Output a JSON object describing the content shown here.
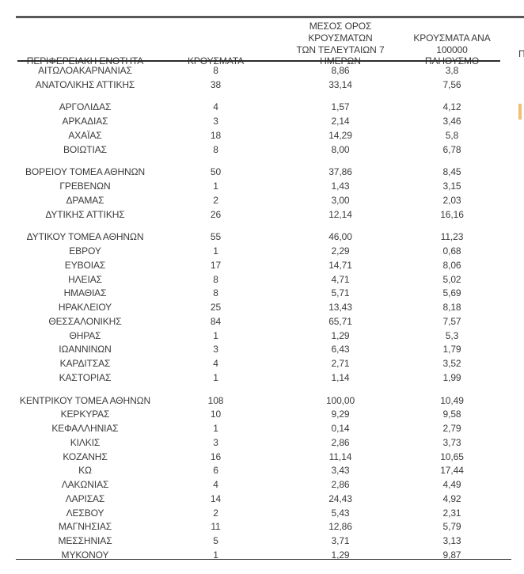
{
  "page": {
    "background": "#ffffff",
    "text_color": "#3b3b3b",
    "top_rule_color": "#58585a",
    "line_color": "#2b2b2b",
    "highlight_color": "#edaa43"
  },
  "table": {
    "header": {
      "col1": "ΠΕΡΙΦΕΡΕΙΑΚΗ ΕΝΟΤΗΤΑ",
      "col2": "ΚΡΟΥΣΜΑΤΑ",
      "col3_lines": [
        "ΜΕΣΟΣ ΟΡΟΣ ΚΡΟΥΣΜΑΤΩΝ",
        "ΤΩΝ ΤΕΛΕΥΤΑΙΩΝ 7",
        "ΗΜΕΡΩΝ"
      ],
      "col4_lines": [
        "ΚΡΟΥΣΜΑΤΑ ΑΝΑ 100000",
        "ΠΛΗΘΥΣΜΟ"
      ],
      "col5_partial": "Π"
    },
    "groups": [
      {
        "rows": [
          {
            "region": "ΑΙΤΩΛΟΑΚΑΡΝΑΝΙΑΣ",
            "cases": "8",
            "avg7": "8,86",
            "per100k": "3,8"
          },
          {
            "region": "ΑΝΑΤΟΛΙΚΗΣ ΑΤΤΙΚΗΣ",
            "cases": "38",
            "avg7": "33,14",
            "per100k": "7,56"
          }
        ]
      },
      {
        "rows": [
          {
            "region": "ΑΡΓΟΛΙΔΑΣ",
            "cases": "4",
            "avg7": "1,57",
            "per100k": "4,12"
          },
          {
            "region": "ΑΡΚΑΔΙΑΣ",
            "cases": "3",
            "avg7": "2,14",
            "per100k": "3,46"
          },
          {
            "region": "ΑΧΑΪΑΣ",
            "cases": "18",
            "avg7": "14,29",
            "per100k": "5,8"
          },
          {
            "region": "ΒΟΙΩΤΙΑΣ",
            "cases": "8",
            "avg7": "8,00",
            "per100k": "6,78"
          }
        ]
      },
      {
        "rows": [
          {
            "region": "ΒΟΡΕΙΟΥ ΤΟΜΕΑ ΑΘΗΝΩΝ",
            "cases": "50",
            "avg7": "37,86",
            "per100k": "8,45"
          },
          {
            "region": "ΓΡΕΒΕΝΩΝ",
            "cases": "1",
            "avg7": "1,43",
            "per100k": "3,15"
          },
          {
            "region": "ΔΡΑΜΑΣ",
            "cases": "2",
            "avg7": "3,00",
            "per100k": "2,03"
          },
          {
            "region": "ΔΥΤΙΚΗΣ ΑΤΤΙΚΗΣ",
            "cases": "26",
            "avg7": "12,14",
            "per100k": "16,16"
          }
        ]
      },
      {
        "rows": [
          {
            "region": "ΔΥΤΙΚΟΥ ΤΟΜΕΑ ΑΘΗΝΩΝ",
            "cases": "55",
            "avg7": "46,00",
            "per100k": "11,23"
          },
          {
            "region": "ΕΒΡΟΥ",
            "cases": "1",
            "avg7": "2,29",
            "per100k": "0,68"
          },
          {
            "region": "ΕΥΒΟΙΑΣ",
            "cases": "17",
            "avg7": "14,71",
            "per100k": "8,06"
          },
          {
            "region": "ΗΛΕΙΑΣ",
            "cases": "8",
            "avg7": "4,71",
            "per100k": "5,02"
          },
          {
            "region": "ΗΜΑΘΙΑΣ",
            "cases": "8",
            "avg7": "5,71",
            "per100k": "5,69"
          },
          {
            "region": "ΗΡΑΚΛΕΙΟΥ",
            "cases": "25",
            "avg7": "13,43",
            "per100k": "8,18"
          },
          {
            "region": "ΘΕΣΣΑΛΟΝΙΚΗΣ",
            "cases": "84",
            "avg7": "65,71",
            "per100k": "7,57"
          },
          {
            "region": "ΘΗΡΑΣ",
            "cases": "1",
            "avg7": "1,29",
            "per100k": "5,3"
          },
          {
            "region": "ΙΩΑΝΝΙΝΩΝ",
            "cases": "3",
            "avg7": "6,43",
            "per100k": "1,79"
          },
          {
            "region": "ΚΑΡΔΙΤΣΑΣ",
            "cases": "4",
            "avg7": "2,71",
            "per100k": "3,52"
          },
          {
            "region": "ΚΑΣΤΟΡΙΑΣ",
            "cases": "1",
            "avg7": "1,14",
            "per100k": "1,99"
          }
        ]
      },
      {
        "rows": [
          {
            "region": "ΚΕΝΤΡΙΚΟΥ ΤΟΜΕΑ ΑΘΗΝΩΝ",
            "cases": "108",
            "avg7": "100,00",
            "per100k": "10,49"
          },
          {
            "region": "ΚΕΡΚΥΡΑΣ",
            "cases": "10",
            "avg7": "9,29",
            "per100k": "9,58"
          },
          {
            "region": "ΚΕΦΑΛΛΗΝΙΑΣ",
            "cases": "1",
            "avg7": "0,14",
            "per100k": "2,79"
          },
          {
            "region": "ΚΙΛΚΙΣ",
            "cases": "3",
            "avg7": "2,86",
            "per100k": "3,73"
          },
          {
            "region": "ΚΟΖΑΝΗΣ",
            "cases": "16",
            "avg7": "11,14",
            "per100k": "10,65"
          },
          {
            "region": "ΚΩ",
            "cases": "6",
            "avg7": "3,43",
            "per100k": "17,44"
          },
          {
            "region": "ΛΑΚΩΝΙΑΣ",
            "cases": "4",
            "avg7": "2,86",
            "per100k": "4,49"
          },
          {
            "region": "ΛΑΡΙΣΑΣ",
            "cases": "14",
            "avg7": "24,43",
            "per100k": "4,92"
          },
          {
            "region": "ΛΕΣΒΟΥ",
            "cases": "2",
            "avg7": "5,43",
            "per100k": "2,31"
          },
          {
            "region": "ΜΑΓΝΗΣΙΑΣ",
            "cases": "11",
            "avg7": "12,86",
            "per100k": "5,79"
          },
          {
            "region": "ΜΕΣΣΗΝΙΑΣ",
            "cases": "5",
            "avg7": "3,71",
            "per100k": "3,13"
          },
          {
            "region": "ΜΥΚΟΝΟΥ",
            "cases": "1",
            "avg7": "1,29",
            "per100k": "9,87"
          }
        ]
      }
    ]
  }
}
